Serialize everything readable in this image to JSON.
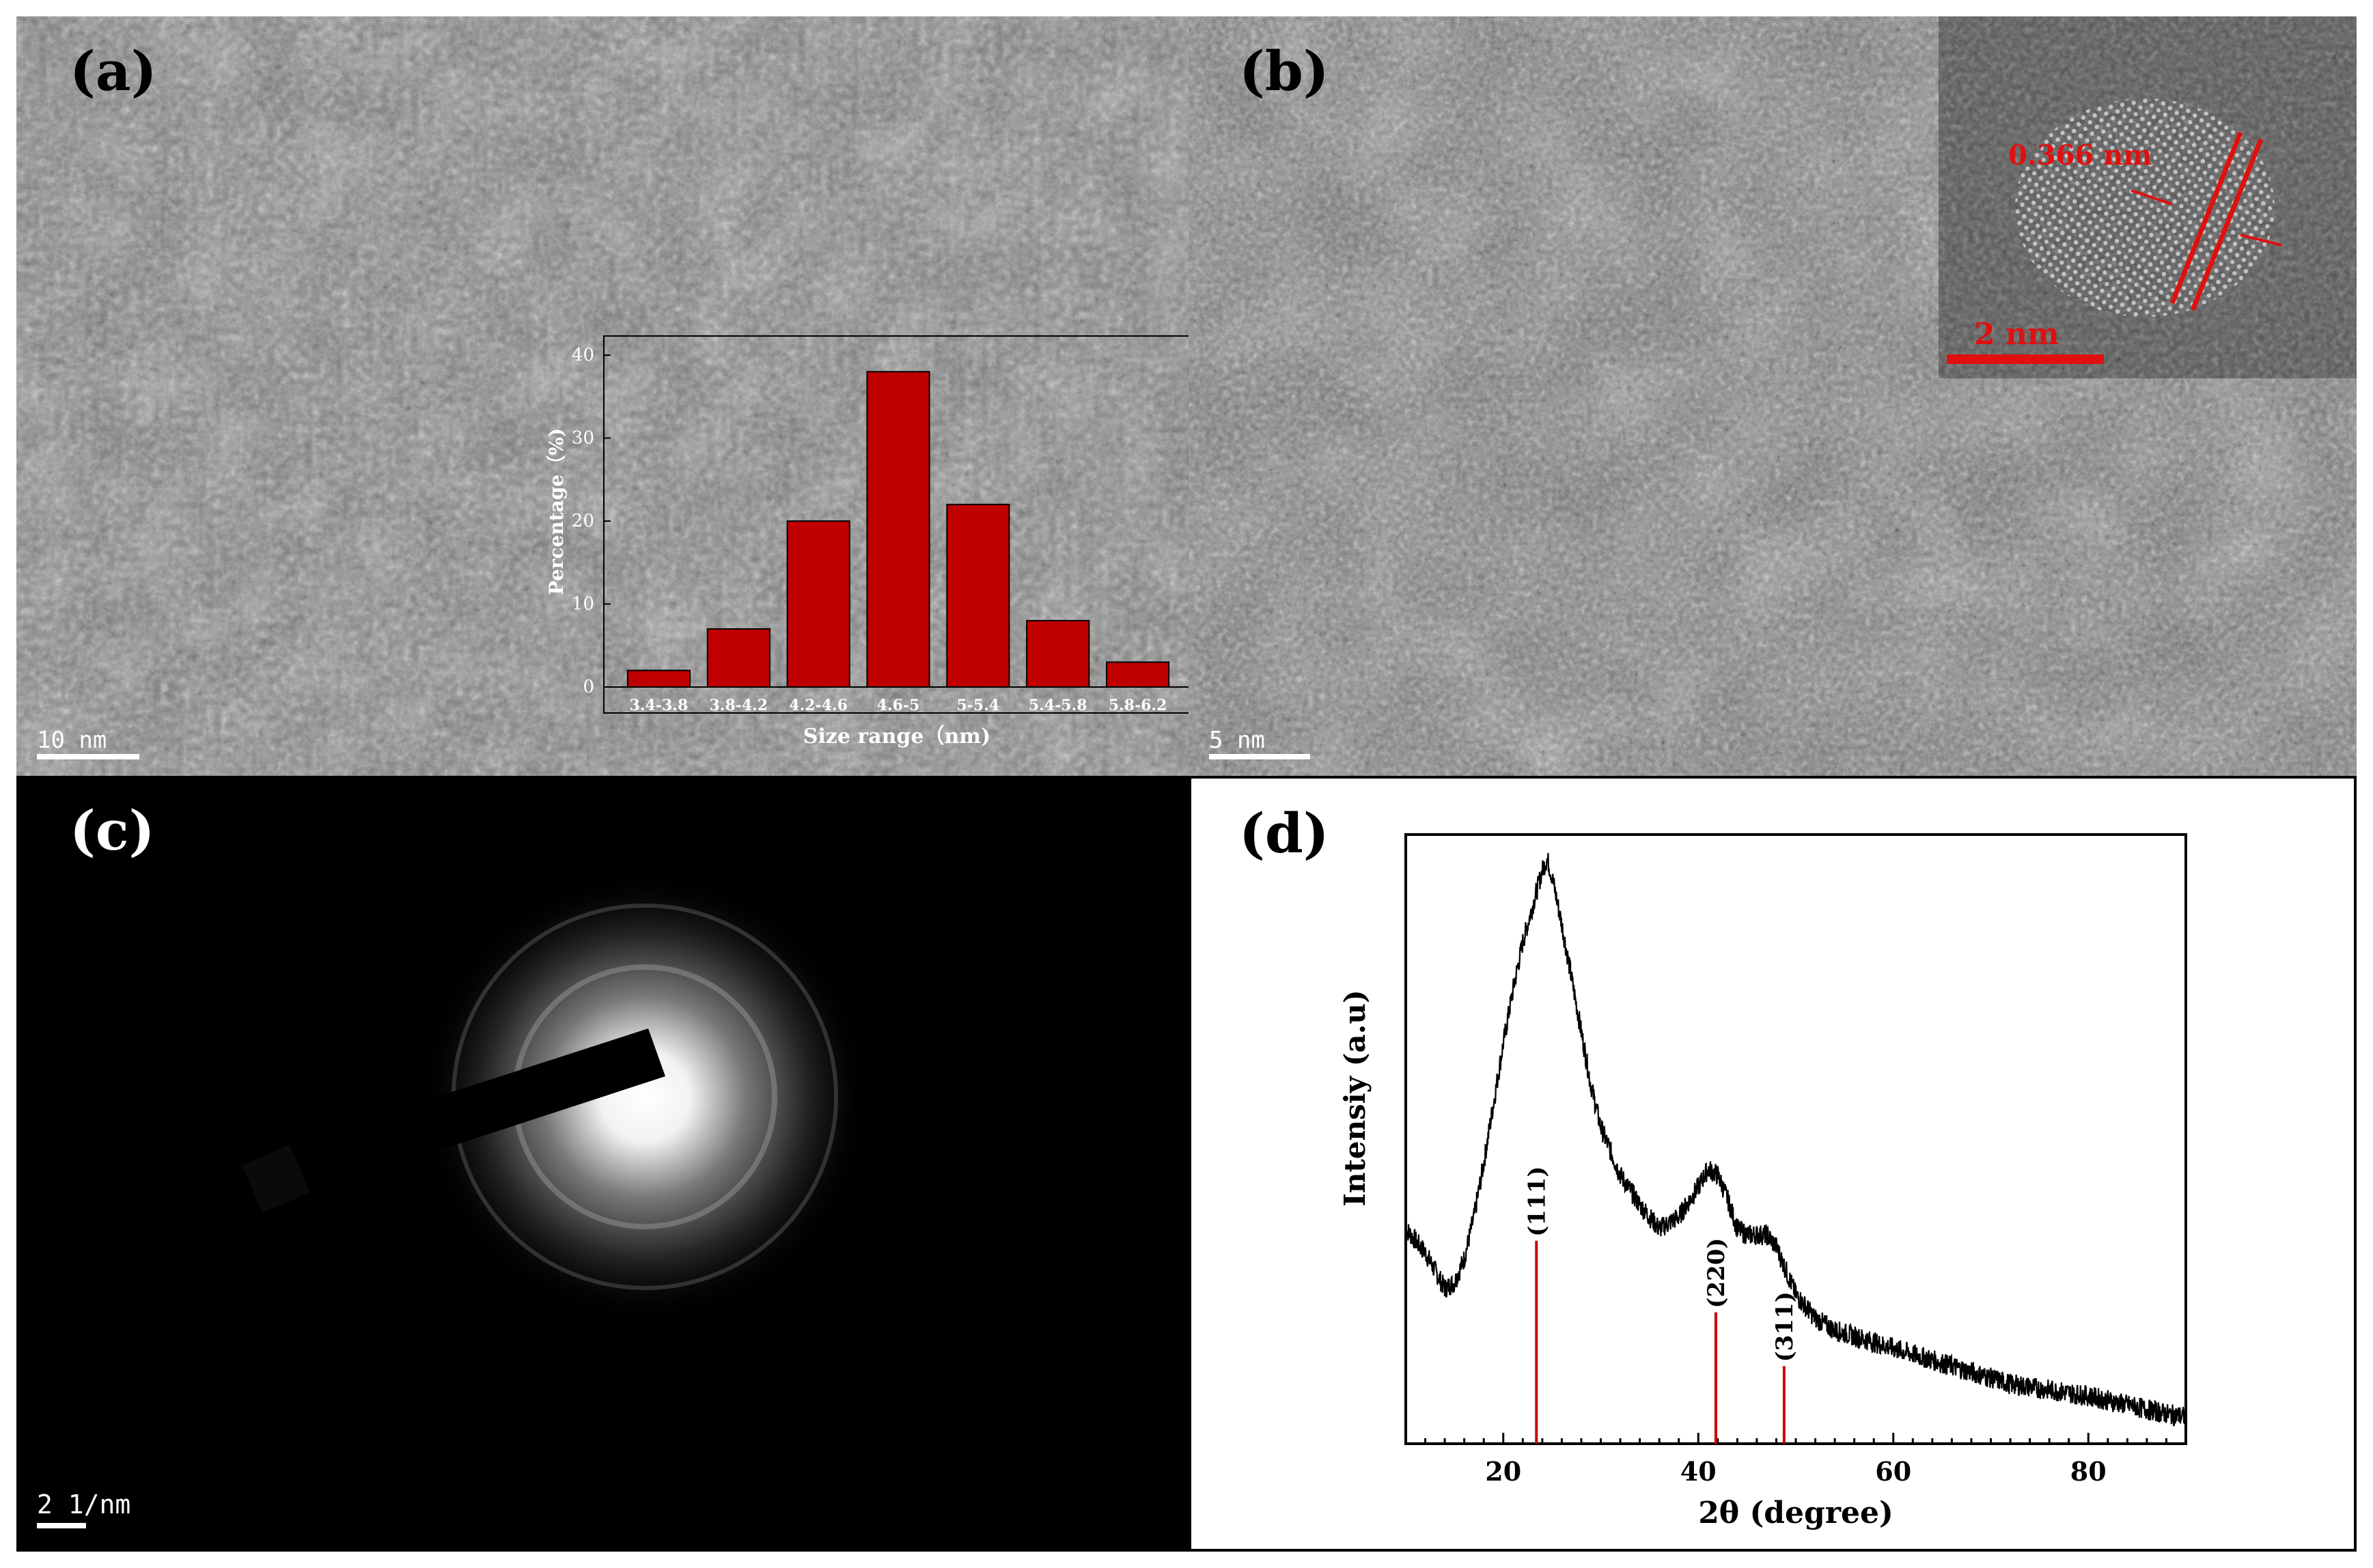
{
  "panels": {
    "a": {
      "label": "(a)",
      "scale_bar": "10 nm"
    },
    "b": {
      "label": "(b)",
      "scale_bar": "5 nm",
      "inset_scale_bar": "2 nm",
      "lattice_spacing": "0.366 nm"
    },
    "c": {
      "label": "(c)",
      "scale_bar": "2 1/nm"
    },
    "d": {
      "label": "(d)"
    }
  },
  "colors": {
    "bar_red": "#c00000",
    "annotation_red": "#e01010",
    "reference_line_red": "#cc0000"
  },
  "chart_data": [
    {
      "type": "bar",
      "panel": "a-inset",
      "categories": [
        "3.4-3.8",
        "3.8-4.2",
        "4.2-4.6",
        "4.6-5",
        "5-5.4",
        "5.4-5.8",
        "5.8-6.2"
      ],
      "values": [
        2,
        7,
        20,
        38,
        22,
        8,
        3
      ],
      "xlabel": "Size range（nm)",
      "ylabel": "Percentage（%)",
      "ylim": [
        0,
        40
      ],
      "yticks": [
        0,
        10,
        20,
        30,
        40
      ],
      "grid": false
    },
    {
      "type": "line",
      "panel": "d",
      "xlabel": "2θ (degree)",
      "ylabel": "Intensiy (a.u)",
      "xlim": [
        10,
        90
      ],
      "xticks": [
        20,
        40,
        60,
        80
      ],
      "series": [
        {
          "x": [
            10,
            12,
            14,
            15,
            16,
            17,
            18,
            19,
            20,
            21,
            22,
            23,
            24,
            24.5,
            25,
            26,
            27,
            28,
            29,
            30,
            32,
            34,
            36,
            38,
            40,
            41,
            42,
            43,
            44,
            45,
            46,
            47,
            48,
            49,
            50,
            52,
            54,
            56,
            58,
            60,
            64,
            68,
            72,
            76,
            80,
            84,
            88,
            90
          ],
          "y": [
            0.36,
            0.32,
            0.26,
            0.27,
            0.31,
            0.38,
            0.47,
            0.57,
            0.67,
            0.76,
            0.84,
            0.9,
            0.96,
            0.98,
            0.95,
            0.87,
            0.78,
            0.69,
            0.6,
            0.53,
            0.45,
            0.4,
            0.36,
            0.38,
            0.43,
            0.46,
            0.45,
            0.41,
            0.36,
            0.35,
            0.35,
            0.35,
            0.33,
            0.29,
            0.25,
            0.21,
            0.19,
            0.18,
            0.17,
            0.16,
            0.14,
            0.12,
            0.1,
            0.09,
            0.08,
            0.065,
            0.05,
            0.045
          ]
        }
      ],
      "reference_peaks": [
        {
          "x": 23.4,
          "label": "(111)",
          "height": 0.34
        },
        {
          "x": 41.8,
          "label": "(220)",
          "height": 0.22
        },
        {
          "x": 48.8,
          "label": "(311)",
          "height": 0.13
        }
      ]
    }
  ]
}
